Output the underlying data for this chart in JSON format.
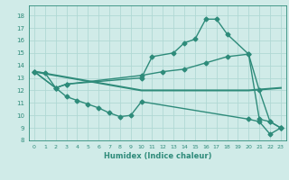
{
  "lines": [
    {
      "x": [
        0,
        1,
        2,
        3,
        10,
        11,
        13,
        14,
        15,
        16,
        17,
        18,
        20,
        21,
        22,
        23
      ],
      "y": [
        13.5,
        13.4,
        12.2,
        12.5,
        13.0,
        14.7,
        15.0,
        15.8,
        16.1,
        17.7,
        17.7,
        16.5,
        14.9,
        12.0,
        9.5,
        9.0
      ],
      "color": "#2e8b7a",
      "marker": "D",
      "markersize": 2.5,
      "linewidth": 1.0
    },
    {
      "x": [
        0,
        2,
        3,
        4,
        5,
        6,
        7,
        8,
        9,
        10,
        20,
        21,
        22,
        23
      ],
      "y": [
        13.5,
        12.2,
        11.5,
        11.2,
        10.9,
        10.6,
        10.2,
        9.9,
        10.0,
        11.1,
        9.7,
        9.5,
        8.5,
        9.0
      ],
      "color": "#2e8b7a",
      "marker": "D",
      "markersize": 2.5,
      "linewidth": 1.0
    },
    {
      "x": [
        0,
        10,
        20,
        23
      ],
      "y": [
        13.5,
        12.0,
        12.0,
        12.2
      ],
      "color": "#2e8b7a",
      "marker": null,
      "markersize": 0,
      "linewidth": 1.5
    },
    {
      "x": [
        0,
        2,
        3,
        10,
        12,
        14,
        16,
        18,
        20,
        21,
        22,
        23
      ],
      "y": [
        13.5,
        12.2,
        12.5,
        13.2,
        13.5,
        13.7,
        14.2,
        14.7,
        14.9,
        9.7,
        9.5,
        9.0
      ],
      "color": "#2e8b7a",
      "marker": "D",
      "markersize": 2.5,
      "linewidth": 1.0
    }
  ],
  "xlabel": "Humidex (Indice chaleur)",
  "xlim": [
    -0.5,
    23.5
  ],
  "ylim": [
    8,
    18.8
  ],
  "xticks": [
    0,
    1,
    2,
    3,
    4,
    5,
    6,
    7,
    8,
    9,
    10,
    11,
    12,
    13,
    14,
    15,
    16,
    17,
    18,
    19,
    20,
    21,
    22,
    23
  ],
  "yticks": [
    8,
    9,
    10,
    11,
    12,
    13,
    14,
    15,
    16,
    17,
    18
  ],
  "bg_color": "#d0ebe8",
  "grid_color": "#b0d8d4",
  "tick_color": "#2e8b7a",
  "label_color": "#2e8b7a"
}
